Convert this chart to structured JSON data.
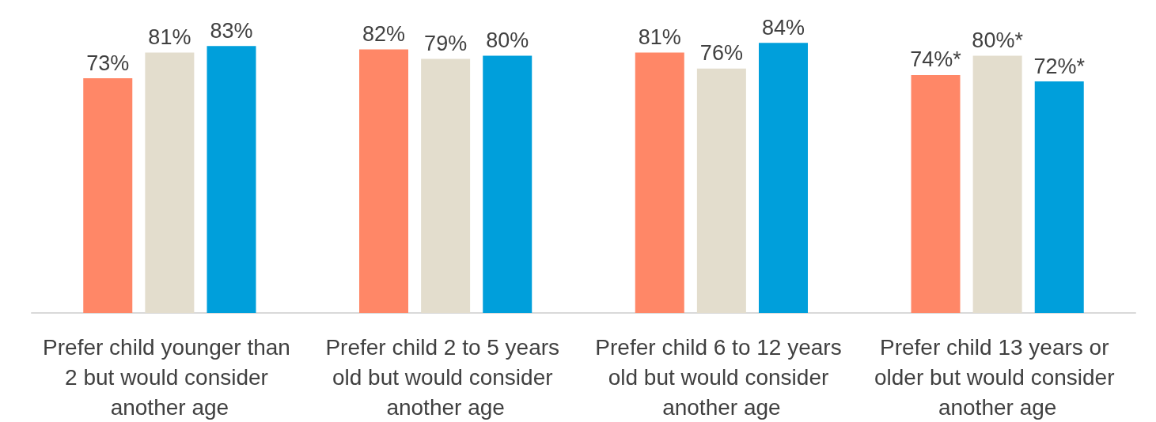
{
  "chart_data": {
    "type": "bar",
    "categories": [
      "Prefer child younger than 2 but would consider another age",
      "Prefer child 2 to 5 years old but would consider another age",
      "Prefer child 6 to 12 years old but would consider another age",
      "Prefer child 13 years or older but would consider another age"
    ],
    "series": [
      {
        "color": "#ff8767",
        "values": [
          73,
          82,
          81,
          74
        ],
        "value_labels": [
          "73%",
          "82%",
          "81%",
          "74%*"
        ]
      },
      {
        "color": "#e3ddcd",
        "values": [
          81,
          79,
          76,
          80
        ],
        "value_labels": [
          "81%",
          "79%",
          "76%",
          "80%*"
        ]
      },
      {
        "color": "#009fdb",
        "values": [
          83,
          80,
          84,
          72
        ],
        "value_labels": [
          "83%",
          "80%",
          "84%",
          "72%*"
        ]
      }
    ],
    "tick_labels": "x"
  }
}
